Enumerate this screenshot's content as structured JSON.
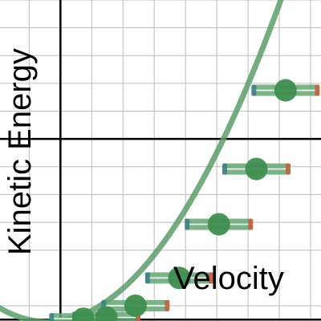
{
  "chart_data": {
    "type": "scatter",
    "xlabel": "Velocity",
    "ylabel": "Kinetic Energy",
    "grid": true,
    "xlim": [
      -2.9,
      12.5
    ],
    "ylim": [
      -1.55,
      10.0
    ],
    "colors": {
      "curve": "#5a9e68",
      "point": "#3e8e4f",
      "bar": "#63a872",
      "bar_left_cap": "#3d7f84",
      "bar_right_cap": "#c2613d",
      "axis": "#000000",
      "grid": "#bdbdbd",
      "background": "#ffffff"
    },
    "curve": {
      "form": "y = a * (x - h)^2 + k",
      "a": 0.0928,
      "h": -0.6,
      "k": -1.58,
      "x_range": [
        -3.0,
        12.5
      ]
    },
    "points": [
      {
        "x": 1.1,
        "y": -1.47,
        "x_err": 1.6
      },
      {
        "x": 2.2,
        "y": -1.42,
        "x_err": 1.6
      },
      {
        "x": 3.6,
        "y": -1.0,
        "x_err": 1.6
      },
      {
        "x": 5.7,
        "y": 0.0,
        "x_err": 1.6
      },
      {
        "x": 7.6,
        "y": 1.93,
        "x_err": 1.6
      },
      {
        "x": 9.4,
        "y": 3.92,
        "x_err": 1.6
      },
      {
        "x": 10.8,
        "y": 6.75,
        "x_err": 1.6
      }
    ]
  }
}
